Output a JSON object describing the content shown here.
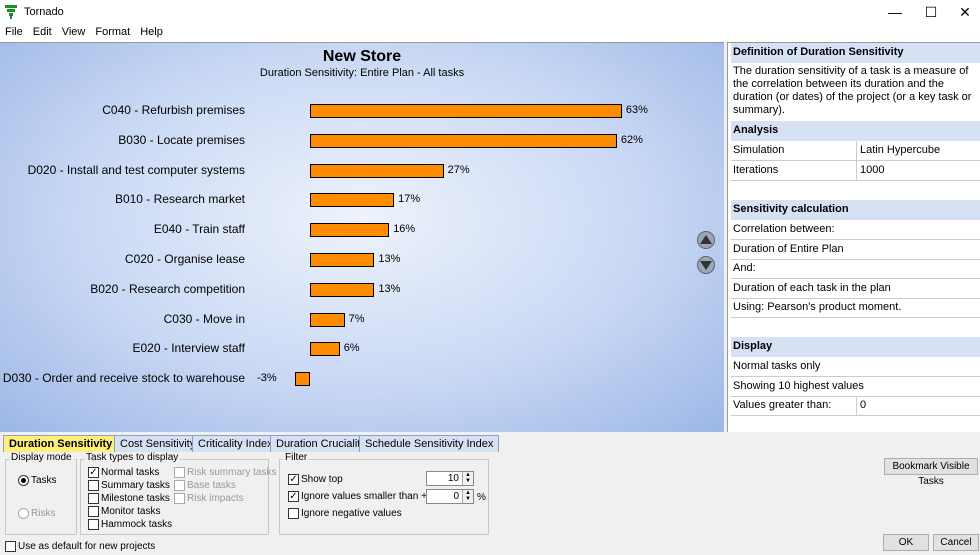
{
  "window": {
    "title": "Tornado"
  },
  "menu": [
    "File",
    "Edit",
    "View",
    "Format",
    "Help"
  ],
  "chart_data": {
    "type": "bar",
    "orientation": "horizontal",
    "title": "New Store",
    "subtitle": "Duration Sensitivity: Entire Plan - All tasks",
    "categories": [
      "C040 - Refurbish premises",
      "B030 - Locate premises",
      "D020 - Install and test computer systems",
      "B010 - Research market",
      "E040 - Train staff",
      "C020 - Organise lease",
      "B020 - Research competition",
      "C030 - Move in",
      "E020 - Interview staff",
      "D030 - Order and receive stock to warehouse"
    ],
    "values": [
      63,
      62,
      27,
      17,
      16,
      13,
      13,
      7,
      6,
      -3
    ],
    "value_labels": [
      "63%",
      "62%",
      "27%",
      "17%",
      "16%",
      "13%",
      "13%",
      "7%",
      "6%",
      "-3%"
    ],
    "bar_color": "#ff8c00",
    "grid": false
  },
  "right_panel": {
    "definition_header": "Definition of Duration Sensitivity",
    "definition_text": "The duration sensitivity of a task is a measure of the correlation between its duration and the duration (or dates) of the project (or a key task or summary).",
    "analysis_header": "Analysis",
    "analysis_rows": [
      {
        "label": "Simulation",
        "value": "Latin Hypercube"
      },
      {
        "label": "Iterations",
        "value": "1000"
      }
    ],
    "calc_header": "Sensitivity calculation",
    "calc_rows": [
      "Correlation between:",
      "Duration of Entire Plan",
      "And:",
      "Duration of each task in the plan",
      "Using: Pearson's product moment."
    ],
    "display_header": "Display",
    "display_rows": [
      {
        "label": "Normal tasks only",
        "value": ""
      },
      {
        "label": "Showing 10 highest values",
        "value": ""
      },
      {
        "label": "Values greater than:",
        "value": "0"
      }
    ]
  },
  "tabs": [
    {
      "label": "Duration Sensitivity",
      "active": true
    },
    {
      "label": "Cost Sensitivity",
      "active": false
    },
    {
      "label": "Criticality Index",
      "active": false
    },
    {
      "label": "Duration Cruciality",
      "active": false
    },
    {
      "label": "Schedule Sensitivity Index",
      "active": false
    }
  ],
  "options": {
    "display_mode_label": "Display mode",
    "display_mode": [
      {
        "label": "Tasks",
        "selected": true,
        "disabled": false
      },
      {
        "label": "Risks",
        "selected": false,
        "disabled": true
      }
    ],
    "task_types_label": "Task types to display",
    "task_types_col1": [
      {
        "label": "Normal tasks",
        "checked": true
      },
      {
        "label": "Summary tasks",
        "checked": false
      },
      {
        "label": "Milestone tasks",
        "checked": false
      },
      {
        "label": "Monitor tasks",
        "checked": false
      },
      {
        "label": "Hammock tasks",
        "checked": false
      }
    ],
    "task_types_col2": [
      {
        "label": "Risk summary tasks",
        "checked": false
      },
      {
        "label": "Base tasks",
        "checked": false
      },
      {
        "label": "Risk impacts",
        "checked": false
      }
    ],
    "filter_label": "Filter",
    "show_top_label": "Show top",
    "show_top_checked": true,
    "show_top_value": "10",
    "ignore_small_label": "Ignore values smaller than +/-",
    "ignore_small_checked": true,
    "ignore_small_value": "0",
    "ignore_small_unit": "%",
    "ignore_negative_label": "Ignore negative values",
    "ignore_negative_checked": false,
    "bookmark_button": "Bookmark Visible Tasks",
    "use_default_label": "Use as default for new projects",
    "ok_button": "OK",
    "cancel_button": "Cancel"
  }
}
